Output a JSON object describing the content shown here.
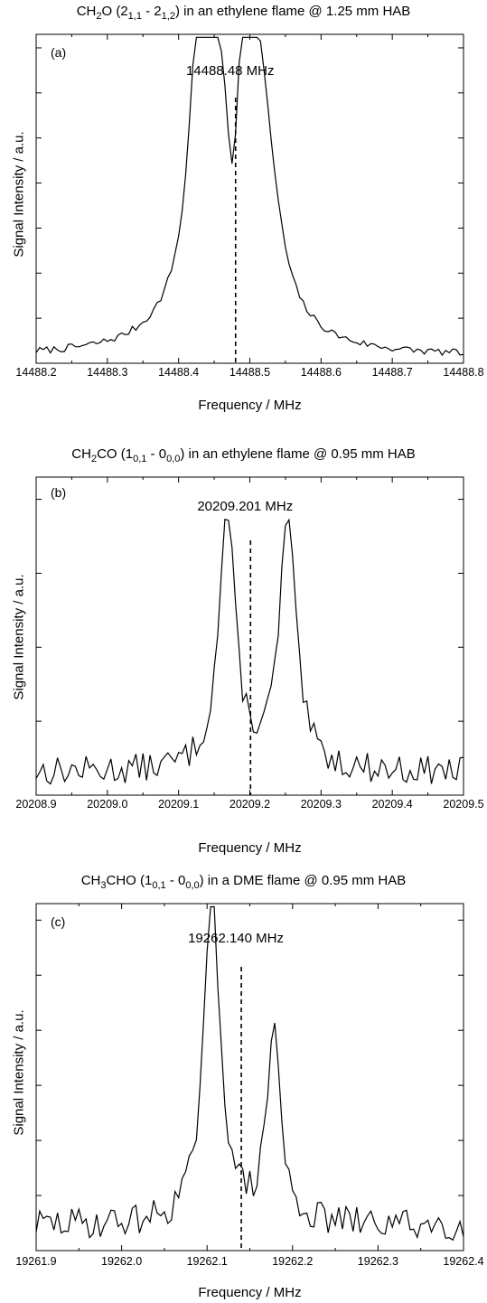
{
  "chart_data": [
    {
      "type": "line",
      "panel": "(a)",
      "title_parts": [
        "CH",
        "2",
        "O (2",
        "1,1",
        " - 2",
        "1,2",
        ") in an ethylene flame @ 1.25 mm HAB"
      ],
      "center_label": "14488.48 MHz",
      "center_freq": 14488.48,
      "xlabel": "Frequency / MHz",
      "ylabel": "Signal Intensity / a.u.",
      "xlim": [
        14488.2,
        14488.8
      ],
      "ylim": [
        0,
        1.1
      ],
      "x_ticks": [
        "14488.2",
        "14488.3",
        "14488.4",
        "14488.5",
        "14488.6",
        "14488.7",
        "14488.8"
      ],
      "ytick_count": 7,
      "peaks": [
        {
          "x": 14488.448,
          "h": 1.0,
          "w": 0.03
        },
        {
          "x": 14488.425,
          "h": 0.45,
          "w": 0.012
        },
        {
          "x": 14488.508,
          "h": 0.85,
          "w": 0.025
        },
        {
          "x": 14488.488,
          "h": 0.33,
          "w": 0.01
        },
        {
          "x": 14488.53,
          "h": 0.12,
          "w": 0.02
        }
      ],
      "dip": {
        "x": 14488.476,
        "d": 0.38,
        "w": 0.01
      },
      "baseline": 0.02,
      "noise": 0.012,
      "seed": 7
    },
    {
      "type": "line",
      "panel": "(b)",
      "title_parts": [
        "CH",
        "2",
        "CO (1",
        "0,1",
        " - 0",
        "0,0",
        ") in an ethylene flame @ 0.95 mm HAB"
      ],
      "center_label": "20209.201 MHz",
      "center_freq": 20209.201,
      "xlabel": "Frequency / MHz",
      "ylabel": "Signal Intensity / a.u.",
      "xlim": [
        20208.9,
        20209.5
      ],
      "ylim": [
        0,
        1.1
      ],
      "x_ticks": [
        "20208.9",
        "20209.0",
        "20209.1",
        "20209.2",
        "20209.3",
        "20209.4",
        "20209.5"
      ],
      "ytick_count": 4,
      "peaks": [
        {
          "x": 20209.168,
          "h": 0.88,
          "w": 0.014
        },
        {
          "x": 20209.253,
          "h": 0.86,
          "w": 0.014
        }
      ],
      "dip": null,
      "baseline": 0.08,
      "noise": 0.05,
      "seed": 13
    },
    {
      "type": "line",
      "panel": "(c)",
      "title_parts": [
        "CH",
        "3",
        "CHO (1",
        "0,1",
        " - 0",
        "0,0",
        ") in a DME flame @ 0.95 mm HAB"
      ],
      "center_label": "19262.140 MHz",
      "center_freq": 19262.14,
      "xlabel": "Frequency / MHz",
      "ylabel": "Signal Intensity / a.u.",
      "xlim": [
        19261.9,
        19262.4
      ],
      "ylim": [
        0,
        1.1
      ],
      "x_ticks": [
        "19261.9",
        "19262.0",
        "19262.1",
        "19262.2",
        "19262.3",
        "19262.4"
      ],
      "ytick_count": 6,
      "peaks": [
        {
          "x": 19262.106,
          "h": 1.02,
          "w": 0.012
        },
        {
          "x": 19262.178,
          "h": 0.63,
          "w": 0.009
        }
      ],
      "dip": null,
      "baseline": 0.08,
      "noise": 0.05,
      "seed": 29
    }
  ]
}
